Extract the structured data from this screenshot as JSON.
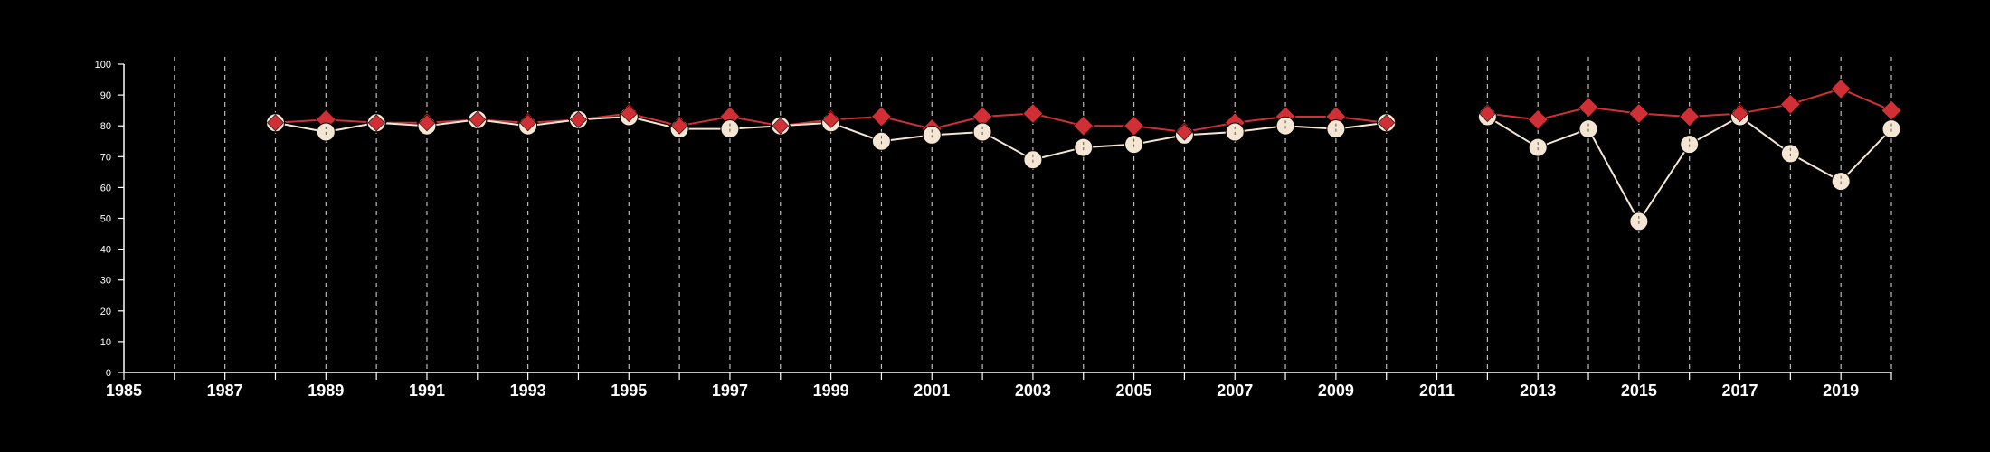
{
  "chart_data": {
    "type": "line",
    "title": "",
    "xlabel": "",
    "ylabel": "",
    "xlim": [
      1985,
      2020
    ],
    "ylim": [
      0,
      100
    ],
    "grid": "vertical dashed",
    "x_tick_labels": [
      "1985",
      "1987",
      "1989",
      "1991",
      "1993",
      "1995",
      "1997",
      "1999",
      "2001",
      "2003",
      "2005",
      "2007",
      "2009",
      "2011",
      "2013",
      "2015",
      "2017",
      "2019"
    ],
    "y_tick_labels": [
      "0",
      "10",
      "20",
      "30",
      "40",
      "50",
      "60",
      "70",
      "80",
      "90",
      "100"
    ],
    "series": [
      {
        "marker": "diamond",
        "color": "#d03035",
        "points": [
          [
            1988,
            81
          ],
          [
            1989,
            82
          ],
          [
            1990,
            81
          ],
          [
            1991,
            81
          ],
          [
            1992,
            82
          ],
          [
            1993,
            81
          ],
          [
            1994,
            82
          ],
          [
            1995,
            84
          ],
          [
            1996,
            80
          ],
          [
            1997,
            83
          ],
          [
            1998,
            80
          ],
          [
            1999,
            82
          ],
          [
            2000,
            83
          ],
          [
            2001,
            79
          ],
          [
            2002,
            83
          ],
          [
            2003,
            84
          ],
          [
            2004,
            80
          ],
          [
            2005,
            80
          ],
          [
            2006,
            78
          ],
          [
            2007,
            81
          ],
          [
            2008,
            83
          ],
          [
            2009,
            83
          ],
          [
            2010,
            81
          ],
          [
            2011,
            null
          ],
          [
            2012,
            84
          ],
          [
            2013,
            82
          ],
          [
            2014,
            86
          ],
          [
            2015,
            84
          ],
          [
            2016,
            83
          ],
          [
            2017,
            84
          ],
          [
            2018,
            87
          ],
          [
            2019,
            92
          ],
          [
            2020,
            85
          ]
        ]
      },
      {
        "marker": "circle",
        "color": "#f5e6d3",
        "points": [
          [
            1988,
            81
          ],
          [
            1989,
            78
          ],
          [
            1990,
            81
          ],
          [
            1991,
            80
          ],
          [
            1992,
            82
          ],
          [
            1993,
            80
          ],
          [
            1994,
            82
          ],
          [
            1995,
            83
          ],
          [
            1996,
            79
          ],
          [
            1997,
            79
          ],
          [
            1998,
            80
          ],
          [
            1999,
            81
          ],
          [
            2000,
            75
          ],
          [
            2001,
            77
          ],
          [
            2002,
            78
          ],
          [
            2003,
            69
          ],
          [
            2004,
            73
          ],
          [
            2005,
            74
          ],
          [
            2006,
            77
          ],
          [
            2007,
            78
          ],
          [
            2008,
            80
          ],
          [
            2009,
            79
          ],
          [
            2010,
            81
          ],
          [
            2011,
            null
          ],
          [
            2012,
            83
          ],
          [
            2013,
            73
          ],
          [
            2014,
            79
          ],
          [
            2015,
            49
          ],
          [
            2016,
            74
          ],
          [
            2017,
            83
          ],
          [
            2018,
            71
          ],
          [
            2019,
            62
          ],
          [
            2020,
            79
          ]
        ]
      }
    ]
  }
}
